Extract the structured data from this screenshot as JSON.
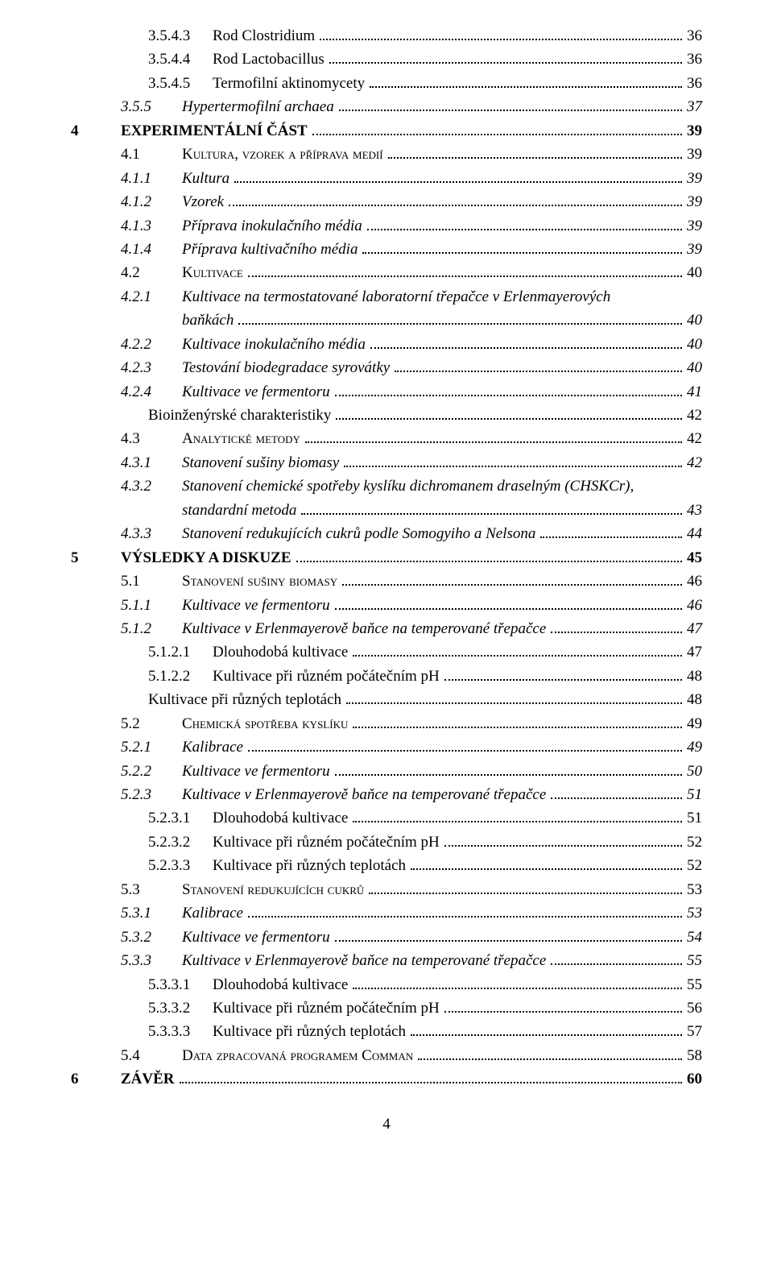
{
  "page_number": "4",
  "entries": [
    {
      "level": 3,
      "num": "3.5.4.3",
      "title": "Rod Clostridium",
      "page": "36",
      "italic": false,
      "bold": false,
      "sc": false
    },
    {
      "level": 3,
      "num": "3.5.4.4",
      "title": "Rod Lactobacillus",
      "page": "36",
      "italic": false,
      "bold": false,
      "sc": false
    },
    {
      "level": 3,
      "num": "3.5.4.5",
      "title": "Termofilní aktinomycety",
      "page": "36",
      "italic": false,
      "bold": false,
      "sc": false
    },
    {
      "level": 2,
      "num": "3.5.5",
      "title": "Hypertermofilní  archaea",
      "page": "37",
      "italic": true,
      "bold": false,
      "sc": false
    },
    {
      "level": 0,
      "num": "4",
      "title": "EXPERIMENTÁLNÍ ČÁST",
      "page": "39",
      "italic": false,
      "bold": true,
      "sc": false
    },
    {
      "level": 1,
      "num": "4.1",
      "title": "Kultura, vzorek a příprava medií",
      "page": "39",
      "italic": false,
      "bold": false,
      "sc": true
    },
    {
      "level": 2,
      "num": "4.1.1",
      "title": "Kultura",
      "page": "39",
      "italic": true,
      "bold": false,
      "sc": false
    },
    {
      "level": 2,
      "num": "4.1.2",
      "title": "Vzorek",
      "page": "39",
      "italic": true,
      "bold": false,
      "sc": false
    },
    {
      "level": 2,
      "num": "4.1.3",
      "title": "Příprava inokulačního média",
      "page": "39",
      "italic": true,
      "bold": false,
      "sc": false
    },
    {
      "level": 2,
      "num": "4.1.4",
      "title": "Příprava kultivačního média",
      "page": "39",
      "italic": true,
      "bold": false,
      "sc": false
    },
    {
      "level": 1,
      "num": "4.2",
      "title": "Kultivace",
      "page": "40",
      "italic": false,
      "bold": false,
      "sc": true
    },
    {
      "level": 2,
      "num": "4.2.1",
      "title": "Kultivace na termostatované laboratorní třepačce v Erlenmayerových",
      "page": "",
      "italic": true,
      "bold": false,
      "sc": false,
      "nobreak_dots": true
    },
    {
      "level": 4,
      "num": "",
      "title": "baňkách",
      "page": "40",
      "italic": true,
      "bold": false,
      "sc": false,
      "continuation": true
    },
    {
      "level": 2,
      "num": "4.2.2",
      "title": "Kultivace inokulačního  média",
      "page": "40",
      "italic": true,
      "bold": false,
      "sc": false
    },
    {
      "level": 2,
      "num": "4.2.3",
      "title": "Testování biodegradace syrovátky",
      "page": "40",
      "italic": true,
      "bold": false,
      "sc": false
    },
    {
      "level": 2,
      "num": "4.2.4",
      "title": "Kultivace ve fermentoru",
      "page": "41",
      "italic": true,
      "bold": false,
      "sc": false
    },
    {
      "level": 4,
      "num": "",
      "title": "Bioinženýrské charakteristiky",
      "page": "42",
      "italic": false,
      "bold": false,
      "sc": false,
      "indent_override": 96
    },
    {
      "level": 1,
      "num": "4.3",
      "title": "Analytické metody",
      "page": "42",
      "italic": false,
      "bold": false,
      "sc": true
    },
    {
      "level": 2,
      "num": "4.3.1",
      "title": "Stanovení sušiny biomasy",
      "page": "42",
      "italic": true,
      "bold": false,
      "sc": false
    },
    {
      "level": 2,
      "num": "4.3.2",
      "title": "Stanovení chemické spotřeby kyslíku dichromanem draselným (CHSKCr),",
      "page": "",
      "italic": true,
      "bold": false,
      "sc": false,
      "nobreak_dots": true
    },
    {
      "level": 4,
      "num": "",
      "title": "standardní metoda",
      "page": "43",
      "italic": true,
      "bold": false,
      "sc": false,
      "continuation": true
    },
    {
      "level": 2,
      "num": "4.3.3",
      "title": "Stanovení redukujících cukrů podle Somogyiho a Nelsona",
      "page": "44",
      "italic": true,
      "bold": false,
      "sc": false
    },
    {
      "level": 0,
      "num": "5",
      "title": "VÝSLEDKY A DISKUZE",
      "page": "45",
      "italic": false,
      "bold": true,
      "sc": false
    },
    {
      "level": 1,
      "num": "5.1",
      "title": "Stanovení sušiny biomasy",
      "page": "46",
      "italic": false,
      "bold": false,
      "sc": true
    },
    {
      "level": 2,
      "num": "5.1.1",
      "title": "Kultivace ve fermentoru",
      "page": "46",
      "italic": true,
      "bold": false,
      "sc": false
    },
    {
      "level": 2,
      "num": "5.1.2",
      "title": "Kultivace v Erlenmayerově baňce na temperované třepačce",
      "page": "47",
      "italic": true,
      "bold": false,
      "sc": false
    },
    {
      "level": 3,
      "num": "5.1.2.1",
      "title": "Dlouhodobá kultivace",
      "page": "47",
      "italic": false,
      "bold": false,
      "sc": false
    },
    {
      "level": 3,
      "num": "5.1.2.2",
      "title": "Kultivace při různém  počátečním pH",
      "page": "48",
      "italic": false,
      "bold": false,
      "sc": false
    },
    {
      "level": 4,
      "num": "",
      "title": "Kultivace při různých teplotách",
      "page": "48",
      "italic": false,
      "bold": false,
      "sc": false,
      "indent_override": 96
    },
    {
      "level": 1,
      "num": "5.2",
      "title": "Chemická spotřeba kyslíku",
      "page": "49",
      "italic": false,
      "bold": false,
      "sc": true
    },
    {
      "level": 2,
      "num": "5.2.1",
      "title": "Kalibrace",
      "page": "49",
      "italic": true,
      "bold": false,
      "sc": false
    },
    {
      "level": 2,
      "num": "5.2.2",
      "title": "Kultivace ve fermentoru",
      "page": "50",
      "italic": true,
      "bold": false,
      "sc": false
    },
    {
      "level": 2,
      "num": "5.2.3",
      "title": "Kultivace v Erlenmayerově baňce na temperované třepačce",
      "page": "51",
      "italic": true,
      "bold": false,
      "sc": false
    },
    {
      "level": 3,
      "num": "5.2.3.1",
      "title": "Dlouhodobá kultivace",
      "page": "51",
      "italic": false,
      "bold": false,
      "sc": false
    },
    {
      "level": 3,
      "num": "5.2.3.2",
      "title": "Kultivace při různém počátečním pH",
      "page": "52",
      "italic": false,
      "bold": false,
      "sc": false
    },
    {
      "level": 3,
      "num": "5.2.3.3",
      "title": "Kultivace při různých teplotách",
      "page": "52",
      "italic": false,
      "bold": false,
      "sc": false
    },
    {
      "level": 1,
      "num": "5.3",
      "title": "Stanovení redukujících cukrů",
      "page": "53",
      "italic": false,
      "bold": false,
      "sc": true
    },
    {
      "level": 2,
      "num": "5.3.1",
      "title": "Kalibrace",
      "page": "53",
      "italic": true,
      "bold": false,
      "sc": false
    },
    {
      "level": 2,
      "num": "5.3.2",
      "title": "Kultivace ve fermentoru",
      "page": "54",
      "italic": true,
      "bold": false,
      "sc": false
    },
    {
      "level": 2,
      "num": "5.3.3",
      "title": "Kultivace v Erlenmayerově baňce na temperované třepačce",
      "page": "55",
      "italic": true,
      "bold": false,
      "sc": false
    },
    {
      "level": 3,
      "num": "5.3.3.1",
      "title": "Dlouhodobá kultivace",
      "page": "55",
      "italic": false,
      "bold": false,
      "sc": false
    },
    {
      "level": 3,
      "num": "5.3.3.2",
      "title": "Kultivace při různém počátečním pH",
      "page": "56",
      "italic": false,
      "bold": false,
      "sc": false
    },
    {
      "level": 3,
      "num": "5.3.3.3",
      "title": "Kultivace při různých teplotách",
      "page": "57",
      "italic": false,
      "bold": false,
      "sc": false
    },
    {
      "level": 1,
      "num": "5.4",
      "title": "Data zpracovaná programem Comman",
      "page": "58",
      "italic": false,
      "bold": false,
      "sc": true
    },
    {
      "level": 0,
      "num": "6",
      "title": "ZÁVĚR",
      "page": "60",
      "italic": false,
      "bold": true,
      "sc": false
    }
  ]
}
